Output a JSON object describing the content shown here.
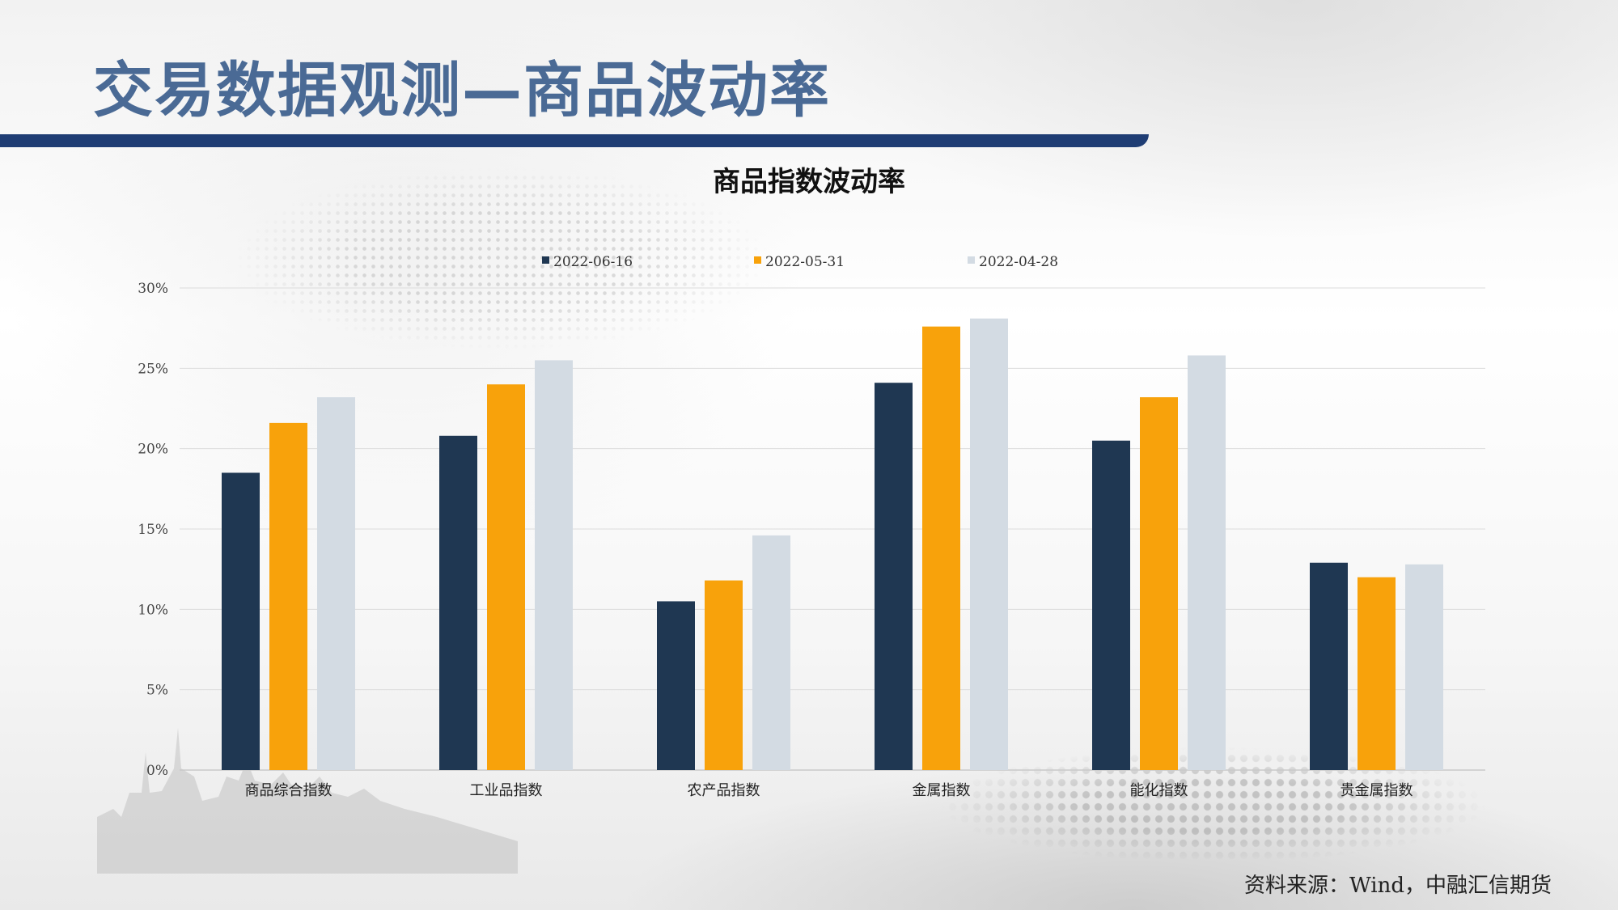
{
  "slide": {
    "title": "交易数据观测—商品波动率",
    "source": "资料来源：Wind，中融汇信期货"
  },
  "colors": {
    "title_text": "#4a6a95",
    "title_bar": "#1f3d74",
    "series": [
      "#1f3752",
      "#f8a20b",
      "#d3dbe3"
    ]
  },
  "chart_data": {
    "type": "bar",
    "title": "商品指数波动率",
    "categories": [
      "商品综合指数",
      "工业品指数",
      "农产品指数",
      "金属指数",
      "能化指数",
      "贵金属指数"
    ],
    "series": [
      {
        "name": "2022-06-16",
        "values": [
          18.5,
          20.8,
          10.5,
          24.1,
          20.5,
          12.9
        ]
      },
      {
        "name": "2022-05-31",
        "values": [
          21.6,
          24.0,
          11.8,
          27.6,
          23.2,
          12.0
        ]
      },
      {
        "name": "2022-04-28",
        "values": [
          23.2,
          25.5,
          14.6,
          28.1,
          25.8,
          12.8
        ]
      }
    ],
    "y_ticks": [
      "0%",
      "5%",
      "10%",
      "15%",
      "20%",
      "25%",
      "30%"
    ],
    "ylim": [
      0,
      30
    ],
    "grid": true,
    "legend_position": "top"
  }
}
